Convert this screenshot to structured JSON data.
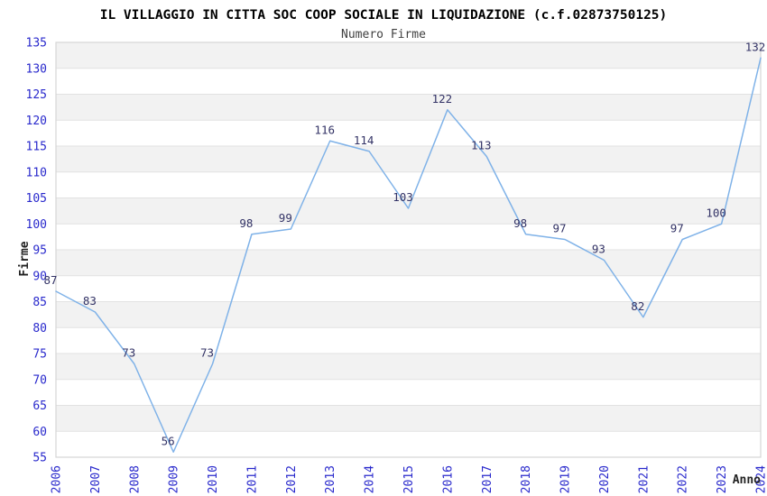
{
  "chart_data": {
    "type": "line",
    "title": "IL VILLAGGIO IN CITTA SOC COOP SOCIALE IN LIQUIDAZIONE (c.f.02873750125)",
    "subtitle": "Numero Firme",
    "xlabel": "Anno",
    "ylabel": "Firme",
    "categories": [
      "2006",
      "2007",
      "2008",
      "2009",
      "2010",
      "2011",
      "2012",
      "2013",
      "2014",
      "2015",
      "2016",
      "2017",
      "2018",
      "2019",
      "2020",
      "2021",
      "2022",
      "2023",
      "2024"
    ],
    "series": [
      {
        "name": "Numero Firme",
        "values": [
          87,
          83,
          73,
          56,
          73,
          98,
          99,
          116,
          114,
          103,
          122,
          113,
          98,
          97,
          93,
          82,
          97,
          100,
          132
        ]
      }
    ],
    "ylim": [
      55,
      135
    ],
    "ytick_step": 5,
    "grid": true,
    "grid_bands": "alternating horizontal, gray topmost",
    "legend_position": "none",
    "colors": {
      "line": "#7FB2E8",
      "tick_label": "#2929CC",
      "data_label": "#333366",
      "band_gray": "#F2F2F2",
      "band_white": "#FFFFFF",
      "gridline": "#E2E2E2",
      "border": "#D6D6D6",
      "title": "#000000",
      "subtitle": "#404040",
      "axis_title": "#222222",
      "background": "#FFFFFF"
    }
  }
}
